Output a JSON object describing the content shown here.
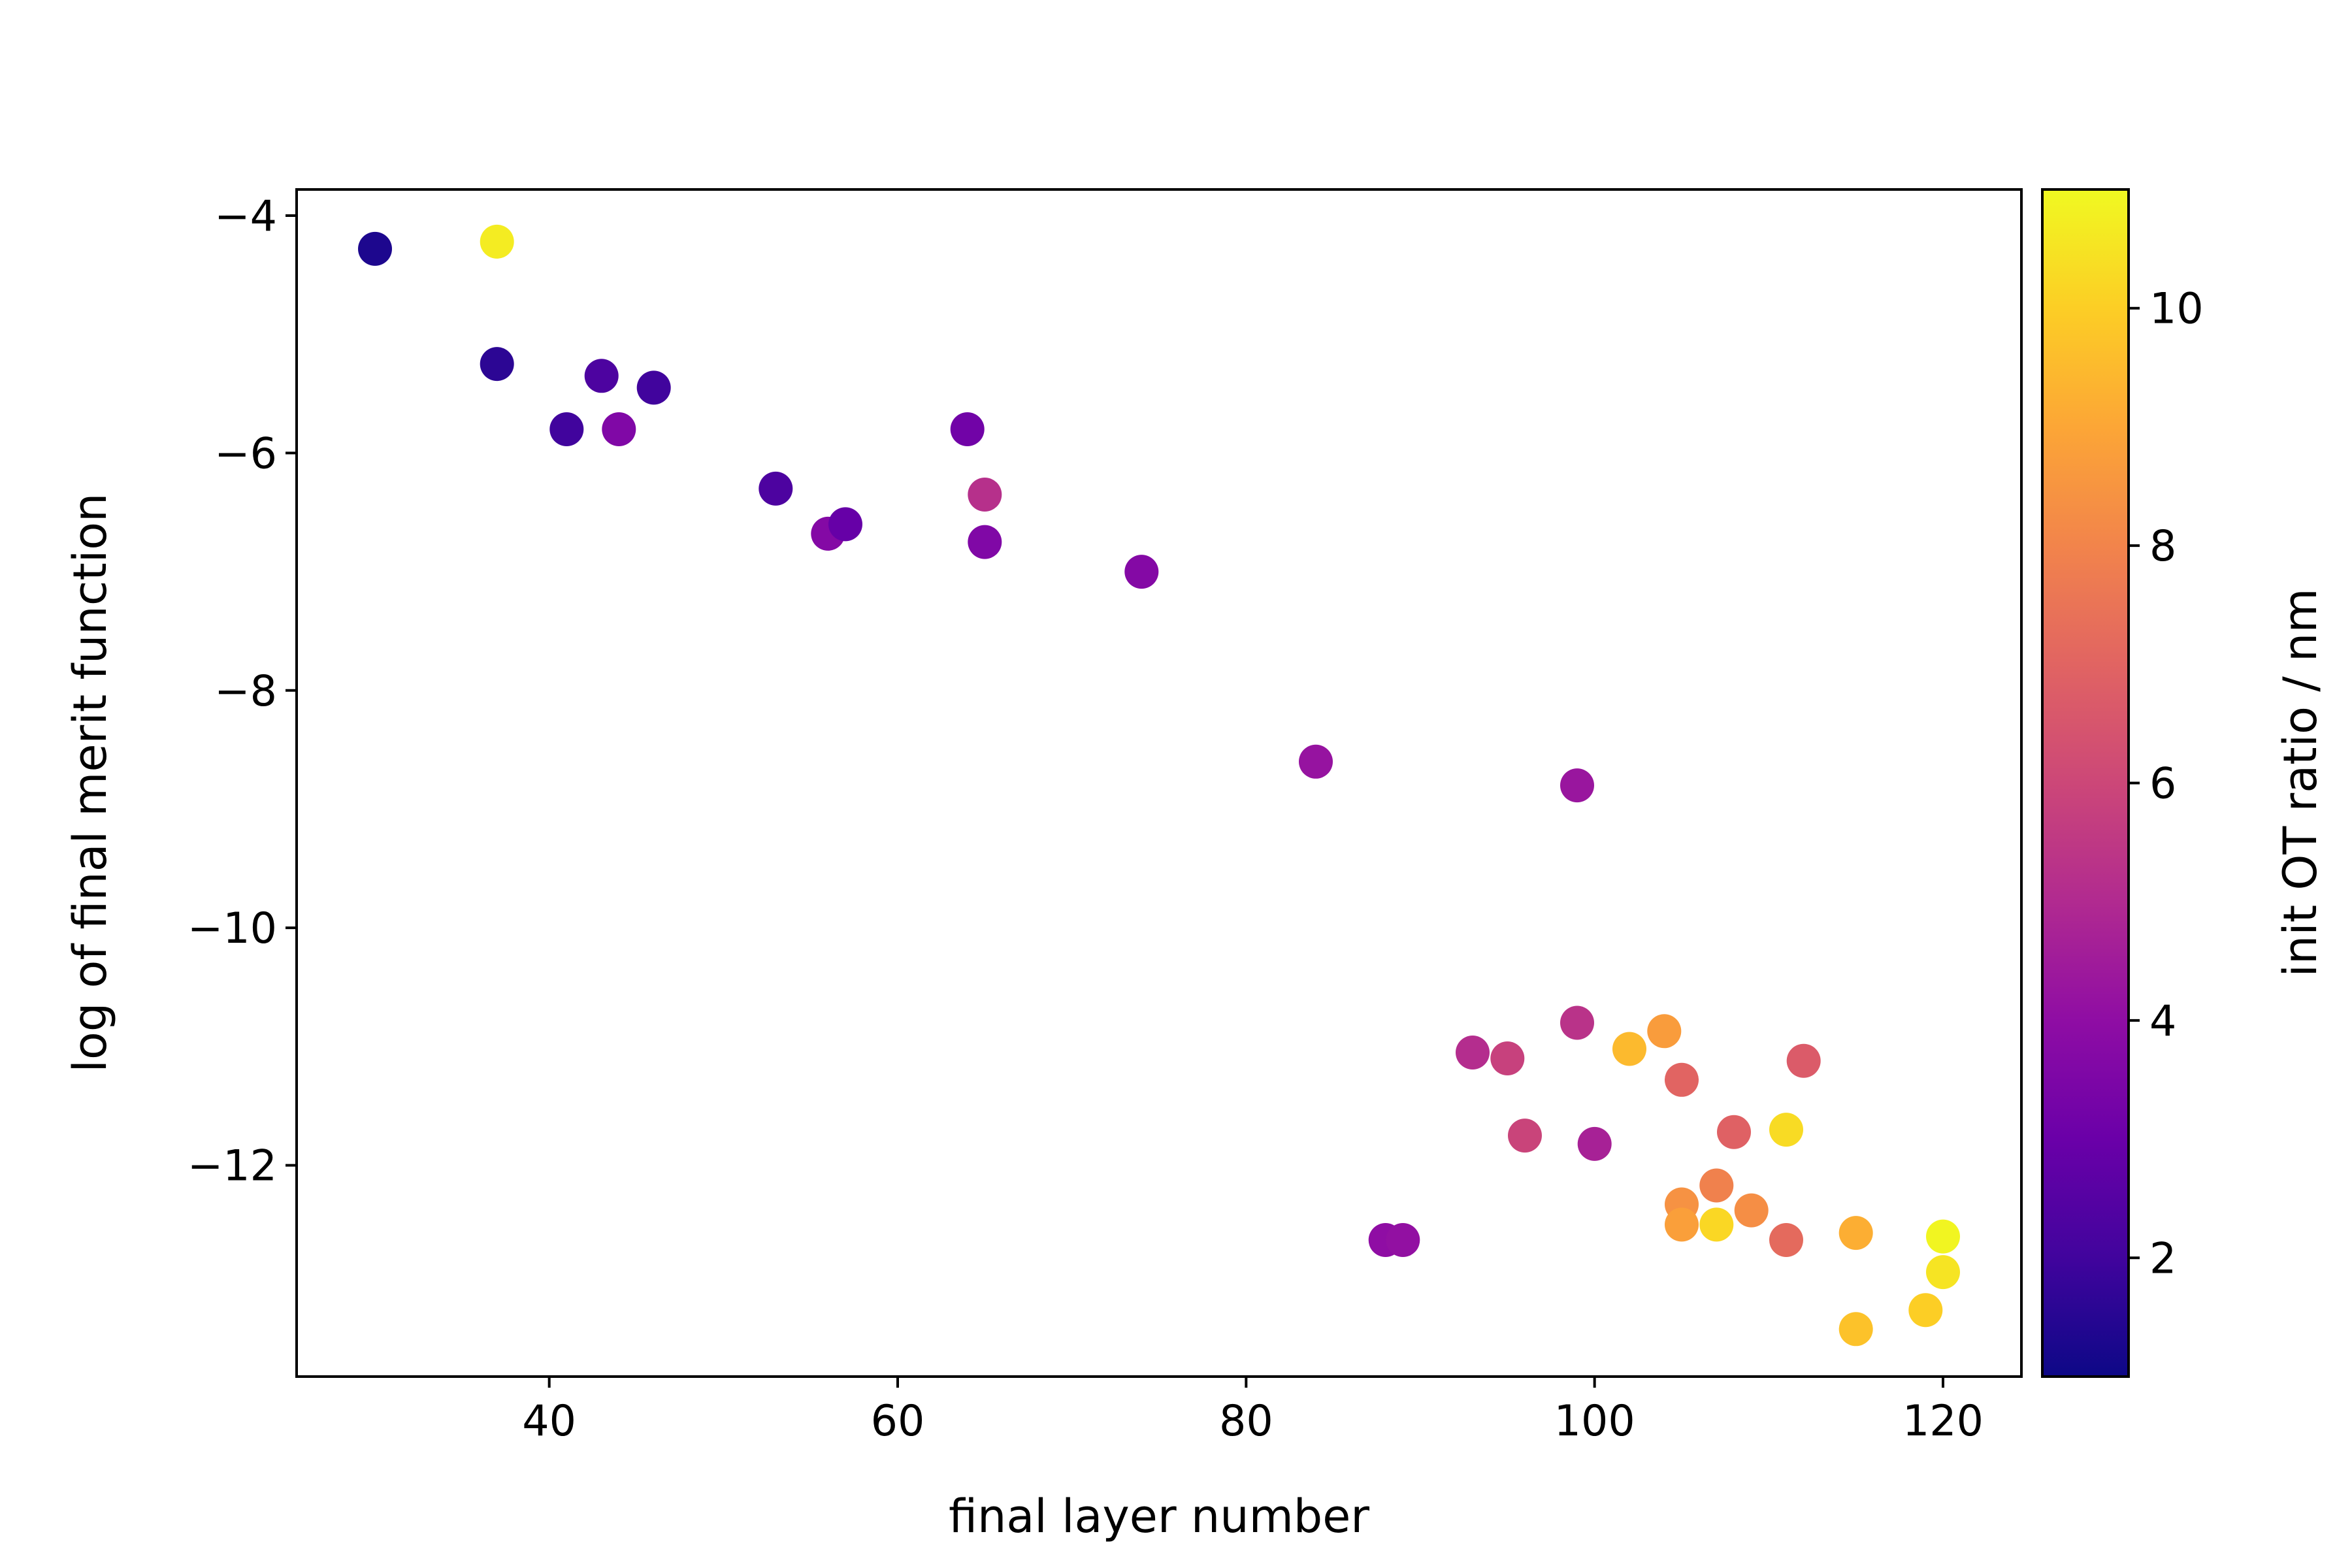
{
  "chart_data": {
    "type": "scatter",
    "title": "",
    "xlabel": "final layer number",
    "ylabel": "log of final merit function",
    "xlim": [
      25.5,
      124.5
    ],
    "ylim": [
      -13.78,
      -3.78
    ],
    "xticks": [
      40,
      60,
      80,
      100,
      120
    ],
    "yticks": [
      -12,
      -10,
      -8,
      -6,
      -4
    ],
    "xtick_labels": [
      "40",
      "60",
      "80",
      "100",
      "120"
    ],
    "ytick_labels": [
      "−12",
      "−10",
      "−8",
      "−6",
      "−4"
    ],
    "grid": false,
    "colorbar": {
      "label": "init OT ratio / nm",
      "colormap": "plasma",
      "range": [
        1.0,
        11.0
      ],
      "ticks": [
        2,
        4,
        6,
        8,
        10
      ],
      "tick_labels": [
        "2",
        "4",
        "6",
        "8",
        "10"
      ],
      "stops": [
        "#0d0887",
        "#41049d",
        "#6a00a8",
        "#8f0da4",
        "#b12a90",
        "#cc4778",
        "#e16462",
        "#f2844b",
        "#fca636",
        "#fcce25",
        "#f0f921"
      ]
    },
    "points": [
      {
        "x": 30,
        "y": -4.28,
        "c": 1.3
      },
      {
        "x": 37,
        "y": -4.22,
        "c": 10.7
      },
      {
        "x": 37,
        "y": -5.25,
        "c": 1.6
      },
      {
        "x": 41,
        "y": -5.8,
        "c": 2.0
      },
      {
        "x": 43,
        "y": -5.35,
        "c": 2.3
      },
      {
        "x": 44,
        "y": -5.8,
        "c": 3.6
      },
      {
        "x": 46,
        "y": -5.45,
        "c": 2.0
      },
      {
        "x": 53,
        "y": -6.3,
        "c": 2.3
      },
      {
        "x": 56,
        "y": -6.68,
        "c": 3.7
      },
      {
        "x": 57,
        "y": -6.6,
        "c": 2.9
      },
      {
        "x": 64,
        "y": -5.8,
        "c": 3.2
      },
      {
        "x": 65,
        "y": -6.35,
        "c": 5.2
      },
      {
        "x": 65,
        "y": -6.75,
        "c": 3.6
      },
      {
        "x": 74,
        "y": -7.0,
        "c": 3.7
      },
      {
        "x": 84,
        "y": -8.6,
        "c": 4.2
      },
      {
        "x": 99,
        "y": -8.8,
        "c": 4.3
      },
      {
        "x": 88,
        "y": -12.63,
        "c": 4.0
      },
      {
        "x": 89,
        "y": -12.63,
        "c": 4.1
      },
      {
        "x": 93,
        "y": -11.05,
        "c": 5.1
      },
      {
        "x": 95,
        "y": -11.1,
        "c": 5.8
      },
      {
        "x": 96,
        "y": -11.75,
        "c": 5.9
      },
      {
        "x": 99,
        "y": -10.8,
        "c": 5.3
      },
      {
        "x": 100,
        "y": -11.82,
        "c": 4.7
      },
      {
        "x": 102,
        "y": -11.02,
        "c": 9.5
      },
      {
        "x": 104,
        "y": -10.87,
        "c": 8.7
      },
      {
        "x": 105,
        "y": -11.28,
        "c": 7.0
      },
      {
        "x": 105,
        "y": -12.33,
        "c": 8.4
      },
      {
        "x": 105,
        "y": -12.5,
        "c": 8.8
      },
      {
        "x": 107,
        "y": -12.17,
        "c": 7.9
      },
      {
        "x": 107,
        "y": -12.5,
        "c": 10.2
      },
      {
        "x": 108,
        "y": -11.72,
        "c": 6.9
      },
      {
        "x": 109,
        "y": -12.38,
        "c": 8.3
      },
      {
        "x": 111,
        "y": -11.7,
        "c": 10.3
      },
      {
        "x": 111,
        "y": -12.63,
        "c": 7.2
      },
      {
        "x": 112,
        "y": -11.12,
        "c": 6.7
      },
      {
        "x": 115,
        "y": -12.57,
        "c": 9.2
      },
      {
        "x": 115,
        "y": -13.38,
        "c": 9.7
      },
      {
        "x": 119,
        "y": -13.22,
        "c": 10.0
      },
      {
        "x": 120,
        "y": -12.6,
        "c": 10.9
      },
      {
        "x": 120,
        "y": -12.9,
        "c": 10.5
      }
    ]
  }
}
